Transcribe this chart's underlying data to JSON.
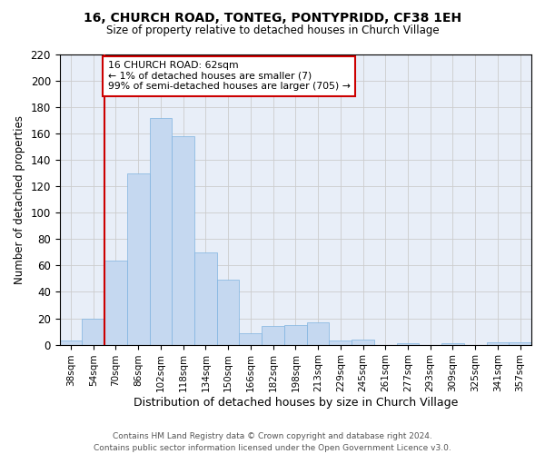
{
  "title": "16, CHURCH ROAD, TONTEG, PONTYPRIDD, CF38 1EH",
  "subtitle": "Size of property relative to detached houses in Church Village",
  "xlabel": "Distribution of detached houses by size in Church Village",
  "ylabel": "Number of detached properties",
  "categories": [
    "38sqm",
    "54sqm",
    "70sqm",
    "86sqm",
    "102sqm",
    "118sqm",
    "134sqm",
    "150sqm",
    "166sqm",
    "182sqm",
    "198sqm",
    "213sqm",
    "229sqm",
    "245sqm",
    "261sqm",
    "277sqm",
    "293sqm",
    "309sqm",
    "325sqm",
    "341sqm",
    "357sqm"
  ],
  "values": [
    3,
    20,
    64,
    130,
    172,
    158,
    70,
    49,
    9,
    14,
    15,
    17,
    3,
    4,
    0,
    1,
    0,
    1,
    0,
    2,
    2
  ],
  "bar_color": "#c5d8f0",
  "bar_edge_color": "#7fb3e0",
  "vline_color": "#cc0000",
  "annotation_text": "16 CHURCH ROAD: 62sqm\n← 1% of detached houses are smaller (7)\n99% of semi-detached houses are larger (705) →",
  "ylim": [
    0,
    220
  ],
  "yticks": [
    0,
    20,
    40,
    60,
    80,
    100,
    120,
    140,
    160,
    180,
    200,
    220
  ],
  "footnote": "Contains HM Land Registry data © Crown copyright and database right 2024.\nContains public sector information licensed under the Open Government Licence v3.0.",
  "grid_color": "#cccccc",
  "background_color": "#e8eef8"
}
